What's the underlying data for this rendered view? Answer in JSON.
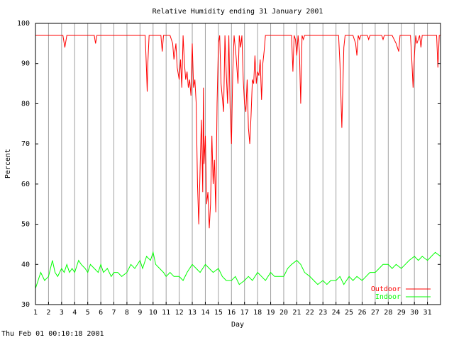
{
  "footer_timestamp": "Thu Feb 01 00:10:18 2001",
  "chart_data": {
    "type": "line",
    "title": "Relative Humidity ending 31 January 2001",
    "xlabel": "Day",
    "ylabel": "Percent",
    "xlim": [
      1,
      32
    ],
    "ylim": [
      30,
      100
    ],
    "x_ticks": [
      1,
      2,
      3,
      4,
      5,
      6,
      7,
      8,
      9,
      10,
      11,
      12,
      13,
      14,
      15,
      16,
      17,
      18,
      19,
      20,
      21,
      22,
      23,
      24,
      25,
      26,
      27,
      28,
      29,
      30,
      31
    ],
    "y_ticks": [
      30,
      40,
      50,
      60,
      70,
      80,
      90,
      100
    ],
    "grid": "vertical",
    "legend_position": "bottom-right",
    "series": [
      {
        "name": "Outdoor",
        "color": "#ff0000",
        "points": [
          [
            1,
            97
          ],
          [
            3.1,
            97
          ],
          [
            3.25,
            94
          ],
          [
            3.4,
            97
          ],
          [
            5.5,
            97
          ],
          [
            5.6,
            95
          ],
          [
            5.7,
            97
          ],
          [
            9.4,
            97
          ],
          [
            9.5,
            88
          ],
          [
            9.55,
            83
          ],
          [
            9.6,
            90
          ],
          [
            9.7,
            97
          ],
          [
            10.6,
            97
          ],
          [
            10.7,
            93
          ],
          [
            10.8,
            97
          ],
          [
            11.3,
            97
          ],
          [
            11.5,
            95
          ],
          [
            11.6,
            91
          ],
          [
            11.75,
            95
          ],
          [
            11.85,
            89
          ],
          [
            12,
            86
          ],
          [
            12.1,
            91
          ],
          [
            12.2,
            84
          ],
          [
            12.3,
            97
          ],
          [
            12.4,
            90
          ],
          [
            12.5,
            86
          ],
          [
            12.6,
            88
          ],
          [
            12.7,
            84
          ],
          [
            12.8,
            86
          ],
          [
            12.9,
            82
          ],
          [
            13,
            95
          ],
          [
            13.1,
            84
          ],
          [
            13.2,
            86
          ],
          [
            13.3,
            80
          ],
          [
            13.4,
            60
          ],
          [
            13.5,
            50
          ],
          [
            13.6,
            64
          ],
          [
            13.7,
            76
          ],
          [
            13.8,
            58
          ],
          [
            13.85,
            84
          ],
          [
            13.9,
            65
          ],
          [
            14,
            72
          ],
          [
            14.1,
            55
          ],
          [
            14.2,
            58
          ],
          [
            14.3,
            49
          ],
          [
            14.4,
            55
          ],
          [
            14.5,
            72
          ],
          [
            14.6,
            60
          ],
          [
            14.7,
            66
          ],
          [
            14.8,
            53
          ],
          [
            14.9,
            80
          ],
          [
            15,
            95
          ],
          [
            15.1,
            97
          ],
          [
            15.2,
            85
          ],
          [
            15.4,
            78
          ],
          [
            15.5,
            97
          ],
          [
            15.6,
            88
          ],
          [
            15.7,
            80
          ],
          [
            15.8,
            97
          ],
          [
            15.9,
            79
          ],
          [
            16,
            70
          ],
          [
            16.1,
            88
          ],
          [
            16.2,
            97
          ],
          [
            16.35,
            92
          ],
          [
            16.5,
            85
          ],
          [
            16.6,
            97
          ],
          [
            16.7,
            94
          ],
          [
            16.8,
            97
          ],
          [
            16.9,
            86
          ],
          [
            17,
            80
          ],
          [
            17.1,
            78
          ],
          [
            17.2,
            86
          ],
          [
            17.3,
            74
          ],
          [
            17.4,
            70
          ],
          [
            17.5,
            77
          ],
          [
            17.6,
            86
          ],
          [
            17.7,
            85
          ],
          [
            17.8,
            92
          ],
          [
            17.9,
            85
          ],
          [
            18,
            88
          ],
          [
            18.1,
            87
          ],
          [
            18.2,
            91
          ],
          [
            18.3,
            81
          ],
          [
            18.4,
            90
          ],
          [
            18.5,
            93
          ],
          [
            18.6,
            97
          ],
          [
            20.6,
            97
          ],
          [
            20.7,
            88
          ],
          [
            20.8,
            97
          ],
          [
            20.9,
            96
          ],
          [
            21,
            92
          ],
          [
            21.1,
            97
          ],
          [
            21.2,
            93
          ],
          [
            21.3,
            80
          ],
          [
            21.4,
            97
          ],
          [
            21.5,
            96
          ],
          [
            21.6,
            97
          ],
          [
            24.2,
            97
          ],
          [
            24.3,
            90
          ],
          [
            24.45,
            74
          ],
          [
            24.6,
            94
          ],
          [
            24.7,
            97
          ],
          [
            25.3,
            97
          ],
          [
            25.5,
            95
          ],
          [
            25.6,
            92
          ],
          [
            25.7,
            97
          ],
          [
            25.8,
            96
          ],
          [
            25.9,
            97
          ],
          [
            26.4,
            97
          ],
          [
            26.5,
            96
          ],
          [
            26.6,
            97
          ],
          [
            27,
            97
          ],
          [
            27.5,
            97
          ],
          [
            27.6,
            96
          ],
          [
            27.7,
            97
          ],
          [
            28.3,
            97
          ],
          [
            28.6,
            95
          ],
          [
            28.8,
            93
          ],
          [
            28.9,
            97
          ],
          [
            29.7,
            97
          ],
          [
            29.8,
            91
          ],
          [
            29.9,
            84
          ],
          [
            30,
            92
          ],
          [
            30.1,
            97
          ],
          [
            30.2,
            95
          ],
          [
            30.4,
            97
          ],
          [
            30.5,
            94
          ],
          [
            30.6,
            97
          ],
          [
            31.7,
            97
          ],
          [
            31.8,
            89
          ],
          [
            31.9,
            97
          ],
          [
            32,
            97
          ]
        ]
      },
      {
        "name": "Indoor",
        "color": "#00ff00",
        "points": [
          [
            1,
            34
          ],
          [
            1.2,
            36
          ],
          [
            1.4,
            38
          ],
          [
            1.7,
            36
          ],
          [
            2,
            37
          ],
          [
            2.3,
            41
          ],
          [
            2.5,
            38
          ],
          [
            2.7,
            37
          ],
          [
            3,
            39
          ],
          [
            3.2,
            38
          ],
          [
            3.4,
            40
          ],
          [
            3.6,
            38
          ],
          [
            3.8,
            39
          ],
          [
            4,
            38
          ],
          [
            4.3,
            41
          ],
          [
            4.5,
            40
          ],
          [
            4.8,
            39
          ],
          [
            5,
            38
          ],
          [
            5.2,
            40
          ],
          [
            5.5,
            39
          ],
          [
            5.8,
            38
          ],
          [
            6,
            40
          ],
          [
            6.2,
            38
          ],
          [
            6.5,
            39
          ],
          [
            6.8,
            37
          ],
          [
            7,
            38
          ],
          [
            7.3,
            38
          ],
          [
            7.6,
            37
          ],
          [
            8,
            38
          ],
          [
            8.3,
            40
          ],
          [
            8.6,
            39
          ],
          [
            9,
            41
          ],
          [
            9.2,
            39
          ],
          [
            9.5,
            42
          ],
          [
            9.8,
            41
          ],
          [
            10,
            43
          ],
          [
            10.2,
            40
          ],
          [
            10.5,
            39
          ],
          [
            10.8,
            38
          ],
          [
            11,
            37
          ],
          [
            11.3,
            38
          ],
          [
            11.6,
            37
          ],
          [
            12,
            37
          ],
          [
            12.3,
            36
          ],
          [
            12.6,
            38
          ],
          [
            13,
            40
          ],
          [
            13.3,
            39
          ],
          [
            13.6,
            38
          ],
          [
            14,
            40
          ],
          [
            14.3,
            39
          ],
          [
            14.6,
            38
          ],
          [
            15,
            39
          ],
          [
            15.3,
            37
          ],
          [
            15.6,
            36
          ],
          [
            16,
            36
          ],
          [
            16.3,
            37
          ],
          [
            16.6,
            35
          ],
          [
            17,
            36
          ],
          [
            17.3,
            37
          ],
          [
            17.6,
            36
          ],
          [
            18,
            38
          ],
          [
            18.3,
            37
          ],
          [
            18.6,
            36
          ],
          [
            19,
            38
          ],
          [
            19.3,
            37
          ],
          [
            19.6,
            37
          ],
          [
            20,
            37
          ],
          [
            20.3,
            39
          ],
          [
            20.6,
            40
          ],
          [
            21,
            41
          ],
          [
            21.3,
            40
          ],
          [
            21.6,
            38
          ],
          [
            22,
            37
          ],
          [
            22.3,
            36
          ],
          [
            22.6,
            35
          ],
          [
            23,
            36
          ],
          [
            23.3,
            35
          ],
          [
            23.6,
            36
          ],
          [
            24,
            36
          ],
          [
            24.3,
            37
          ],
          [
            24.6,
            35
          ],
          [
            25,
            37
          ],
          [
            25.3,
            36
          ],
          [
            25.6,
            37
          ],
          [
            26,
            36
          ],
          [
            26.3,
            37
          ],
          [
            26.6,
            38
          ],
          [
            27,
            38
          ],
          [
            27.3,
            39
          ],
          [
            27.6,
            40
          ],
          [
            28,
            40
          ],
          [
            28.3,
            39
          ],
          [
            28.6,
            40
          ],
          [
            29,
            39
          ],
          [
            29.3,
            40
          ],
          [
            29.6,
            41
          ],
          [
            30,
            42
          ],
          [
            30.3,
            41
          ],
          [
            30.6,
            42
          ],
          [
            31,
            41
          ],
          [
            31.3,
            42
          ],
          [
            31.6,
            43
          ],
          [
            32,
            42
          ]
        ]
      }
    ]
  }
}
